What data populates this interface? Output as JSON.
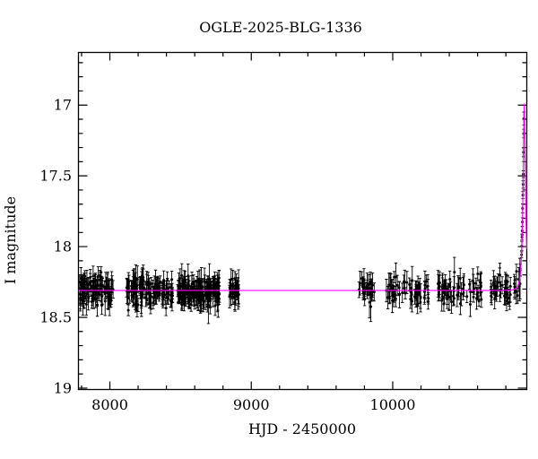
{
  "window": {
    "background_color": "#ffffff"
  },
  "chart_data": {
    "type": "scatter",
    "title": "OGLE-2025-BLG-1336",
    "xlabel": "HJD - 2450000",
    "ylabel": "I magnitude",
    "x_range": [
      7778,
      10948
    ],
    "y_range_mag": [
      16.628,
      19.01
    ],
    "y_axis_inverted": true,
    "grid": false,
    "legend": "none",
    "x_ticks_major": [
      8000,
      9000,
      10000
    ],
    "x_tick_labels": [
      "8000",
      "9000",
      "10000"
    ],
    "x_minor_step": 200,
    "y_ticks_major": [
      17,
      17.5,
      18,
      18.5,
      19
    ],
    "y_tick_labels": [
      "17",
      "17.5",
      "18",
      "18.5",
      "19"
    ],
    "y_minor_step": 0.1,
    "point_color": "#000000",
    "model_color": "#ff00ff",
    "frame_color": "#000000",
    "baseline_mag": 18.31,
    "peak": {
      "t": 10930,
      "mag": 17.0
    },
    "microlensing_model": {
      "t0": 10930,
      "tE": 18,
      "u0": 0.31,
      "baseline_mag": 18.31
    },
    "seasons": [
      {
        "t_start": 7785,
        "t_end": 8030,
        "n": 95,
        "sigma": 0.045
      },
      {
        "t_start": 8117,
        "t_end": 8445,
        "n": 115,
        "sigma": 0.05
      },
      {
        "t_start": 8478,
        "t_end": 8775,
        "n": 170,
        "sigma": 0.05
      },
      {
        "t_start": 8845,
        "t_end": 8920,
        "n": 30,
        "sigma": 0.04
      },
      {
        "t_start": 9750,
        "t_end": 9875,
        "n": 26,
        "sigma": 0.05
      },
      {
        "t_start": 9955,
        "t_end": 10265,
        "n": 58,
        "sigma": 0.05
      },
      {
        "t_start": 10320,
        "t_end": 10628,
        "n": 60,
        "sigma": 0.05
      },
      {
        "t_start": 10695,
        "t_end": 10908,
        "n": 48,
        "sigma": 0.045
      }
    ],
    "rise_cadence": {
      "t_start": 10911,
      "t_end": 10928,
      "step": 1.5,
      "sigma": 0.02
    },
    "seed": 11
  }
}
